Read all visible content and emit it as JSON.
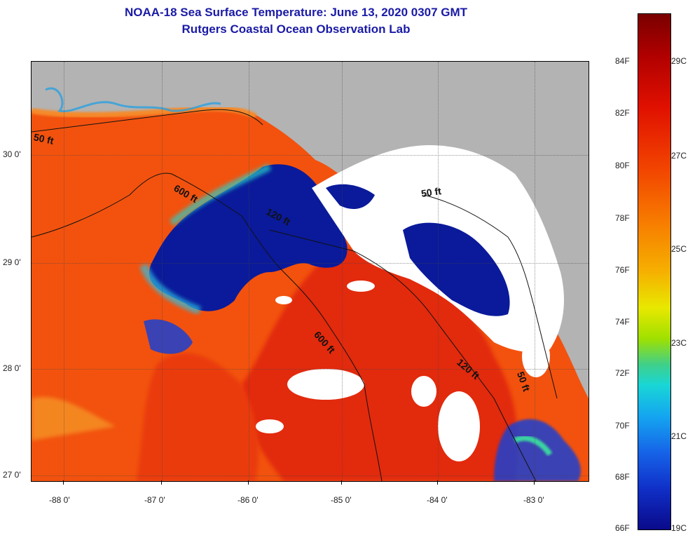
{
  "header": {
    "title_line1": "NOAA-18 Sea Surface Temperature:  June 13, 2020 0307 GMT",
    "title_line2": "Rutgers Coastal Ocean Observation Lab"
  },
  "map": {
    "longitude_labels": [
      "-88 0'",
      "-87 0'",
      "-86 0'",
      "-85 0'",
      "-84 0'",
      "-83 0'"
    ],
    "latitude_labels": [
      "30 0'",
      "29 0'",
      "28 0'",
      "27 0'"
    ],
    "contour_labels": [
      "50 ft",
      "600 ft",
      "120 ft",
      "600 ft",
      "50 ft",
      "120 ft",
      "50 ft"
    ],
    "colors": {
      "land": "#b3b3b3",
      "cloud": "#ffffff",
      "warm_water": "#f2520e",
      "hot_water": "#e82a0a",
      "cold_water": "#0a1a9a"
    }
  },
  "colorbar": {
    "fahrenheit_labels": [
      "84F",
      "82F",
      "80F",
      "78F",
      "76F",
      "74F",
      "72F",
      "70F",
      "68F",
      "66F"
    ],
    "celsius_labels": [
      "29C",
      "27C",
      "25C",
      "23C",
      "21C",
      "19C"
    ]
  }
}
